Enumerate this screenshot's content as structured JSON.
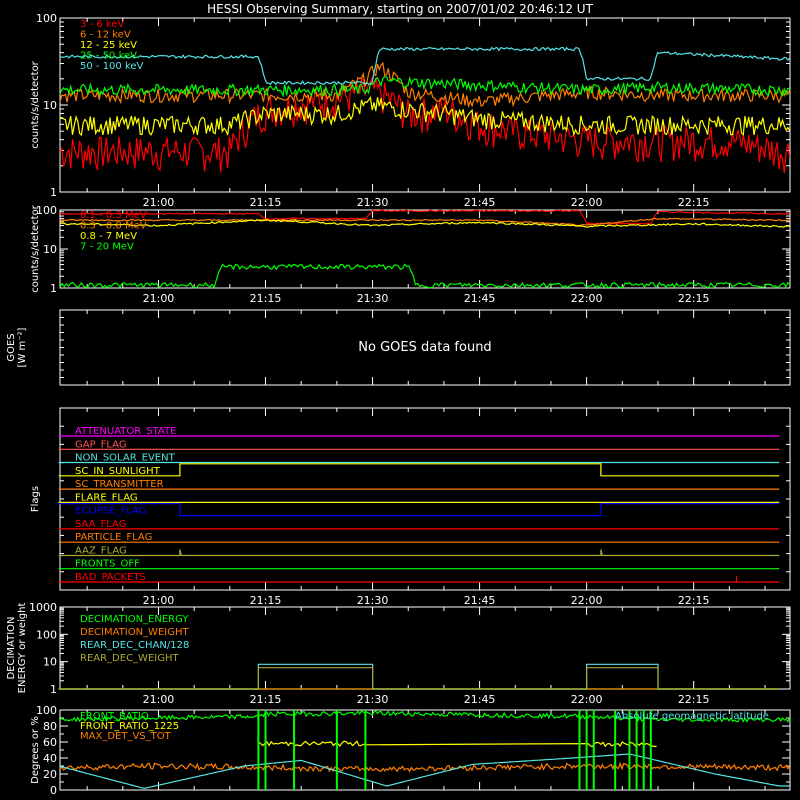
{
  "title": "HESSI Observing Summary, starting on 2007/01/02 20:46:12 UT",
  "time_ticks": [
    "21:00",
    "21:15",
    "21:30",
    "21:45",
    "22:00",
    "22:15"
  ],
  "colors": {
    "red": "#ff0000",
    "orange": "#ff7f00",
    "yellow": "#ffff00",
    "green": "#00ff00",
    "cyan": "#55e5e5",
    "magenta": "#ff00ff",
    "blue": "#0000ff",
    "olive": "#aaaa33",
    "coral": "#ff5555",
    "white": "#ffffff"
  },
  "chart_data": [
    {
      "type": "line",
      "id": "panel1",
      "ylabel": "counts/s/detector",
      "yscale": "log",
      "ylim": [
        1,
        100
      ],
      "ytick_labels": [
        "1",
        "10",
        "100"
      ],
      "legend": [
        "3 - 6 keV",
        "6 - 12 keV",
        "12 - 25 keV",
        "25 - 50 keV",
        "50 - 100 keV"
      ],
      "legend_colors": [
        "#ff0000",
        "#ff7f00",
        "#ffff00",
        "#00ff00",
        "#55e5e5"
      ],
      "series": [
        {
          "name": "3 - 6 keV",
          "color": "#ff0000",
          "x": [
            "20:46",
            "21:10",
            "21:15",
            "21:25",
            "21:30",
            "21:35",
            "21:40",
            "21:45",
            "21:50",
            "22:00",
            "22:10",
            "22:20",
            "22:27"
          ],
          "y": [
            3,
            3,
            9,
            12,
            15,
            8,
            9,
            6,
            5,
            4,
            4,
            4,
            3
          ]
        },
        {
          "name": "6 - 12 keV",
          "color": "#ff7f00",
          "x": [
            "20:46",
            "21:15",
            "21:25",
            "21:29",
            "21:31",
            "21:35",
            "21:45",
            "22:00",
            "22:10",
            "22:27"
          ],
          "y": [
            13,
            13,
            13,
            20,
            28,
            14,
            11,
            14,
            13,
            13
          ]
        },
        {
          "name": "12 - 25 keV",
          "color": "#ffff00",
          "x": [
            "20:46",
            "21:10",
            "21:15",
            "21:25",
            "21:30",
            "21:35",
            "21:45",
            "22:00",
            "22:10",
            "22:27"
          ],
          "y": [
            6,
            6,
            8,
            8,
            10,
            9,
            7,
            6,
            6,
            6
          ]
        },
        {
          "name": "25 - 50 keV",
          "color": "#00ff00",
          "x": [
            "20:46",
            "21:15",
            "21:29",
            "21:31",
            "21:45",
            "22:00",
            "22:10",
            "22:27"
          ],
          "y": [
            15,
            15,
            15,
            19,
            17,
            15,
            16,
            15
          ]
        },
        {
          "name": "50 - 100 keV",
          "color": "#55e5e5",
          "x": [
            "20:46",
            "21:14",
            "21:15",
            "21:30",
            "21:31",
            "21:59",
            "22:00",
            "22:09",
            "22:10",
            "22:27"
          ],
          "y": [
            36,
            36,
            18,
            18,
            44,
            44,
            20,
            20,
            40,
            34
          ]
        }
      ]
    },
    {
      "type": "line",
      "id": "panel2",
      "ylabel": "counts/s/detector",
      "yscale": "log",
      "ylim": [
        1,
        100
      ],
      "ytick_labels": [
        "1",
        "10",
        "100"
      ],
      "legend": [
        "0.1 - 0.3 MeV",
        "0.3 - 0.8 MeV",
        "0.8 - 7 MeV",
        "7 - 20 MeV"
      ],
      "legend_colors": [
        "#ff0000",
        "#ff7f00",
        "#ffff00",
        "#00ff00"
      ],
      "series": [
        {
          "name": "0.1 - 0.3 MeV",
          "color": "#ff0000",
          "x": [
            "20:46",
            "21:14",
            "21:15",
            "21:29",
            "21:30",
            "21:59",
            "22:00",
            "22:09",
            "22:10",
            "22:27"
          ],
          "y": [
            80,
            80,
            60,
            60,
            95,
            95,
            45,
            45,
            90,
            80
          ]
        },
        {
          "name": "0.3 - 0.8 MeV",
          "color": "#ff7f00",
          "x": [
            "20:46",
            "21:15",
            "21:30",
            "21:45",
            "22:00",
            "22:10",
            "22:27"
          ],
          "y": [
            55,
            55,
            55,
            55,
            40,
            60,
            55
          ]
        },
        {
          "name": "0.8 - 7 MeV",
          "color": "#ffff00",
          "x": [
            "20:46",
            "21:00",
            "21:15",
            "21:30",
            "21:45",
            "22:00",
            "22:15",
            "22:27"
          ],
          "y": [
            45,
            40,
            55,
            40,
            48,
            38,
            44,
            38
          ]
        },
        {
          "name": "7 - 20 MeV",
          "color": "#00ff00",
          "x": [
            "20:46",
            "21:08",
            "21:09",
            "21:35",
            "21:36",
            "22:27"
          ],
          "y": [
            1.2,
            1.2,
            3.5,
            3.5,
            1.2,
            1.2
          ]
        }
      ]
    },
    {
      "type": "line",
      "id": "panel3",
      "ylabel": "GOES",
      "ylabel2": "[W m⁻²]",
      "message": "No GOES data found",
      "series": []
    },
    {
      "type": "line",
      "id": "panel4",
      "ylabel": "Flags",
      "series": [
        {
          "name": "ATTENUATOR_STATE",
          "color": "#ff00ff",
          "x": [
            "20:46",
            "22:27"
          ],
          "y": [
            0,
            0
          ]
        },
        {
          "name": "GAP_FLAG",
          "color": "#ff5555",
          "x": [
            "20:46",
            "22:27"
          ],
          "y": [
            0,
            0
          ]
        },
        {
          "name": "NON_SOLAR_EVENT",
          "color": "#55e5e5",
          "x": [
            "20:46",
            "22:27"
          ],
          "y": [
            0,
            0
          ]
        },
        {
          "name": "SC_IN_SUNLIGHT",
          "color": "#ffff00",
          "x": [
            "20:46",
            "21:03",
            "21:03",
            "22:02",
            "22:02",
            "22:27"
          ],
          "y": [
            0,
            0,
            1,
            1,
            0,
            0
          ]
        },
        {
          "name": "SC_TRANSMITTER",
          "color": "#ff7f00",
          "x": [
            "20:46",
            "22:27"
          ],
          "y": [
            0,
            0
          ]
        },
        {
          "name": "FLARE_FLAG",
          "color": "#ffff00",
          "x": [
            "20:46",
            "22:27"
          ],
          "y": [
            0,
            0
          ]
        },
        {
          "name": "ECLIPSE_FLAG",
          "color": "#0000ff",
          "x": [
            "20:46",
            "21:03",
            "21:03",
            "22:02",
            "22:02",
            "22:27"
          ],
          "y": [
            1,
            1,
            0,
            0,
            1,
            1
          ]
        },
        {
          "name": "SAA_FLAG",
          "color": "#ff0000",
          "x": [
            "20:46",
            "22:27"
          ],
          "y": [
            0,
            0
          ]
        },
        {
          "name": "PARTICLE_FLAG",
          "color": "#ff7f00",
          "x": [
            "20:46",
            "22:27"
          ],
          "y": [
            0,
            0
          ]
        },
        {
          "name": "AAZ_FLAG",
          "color": "#aaaa33",
          "x": [
            "20:46",
            "21:03",
            "21:03",
            "21:03",
            "21:03",
            "22:02",
            "22:02",
            "22:02",
            "22:02",
            "22:27"
          ],
          "y": [
            0,
            0,
            1,
            1,
            0,
            0,
            1,
            1,
            0,
            0
          ]
        },
        {
          "name": "FRONTS_OFF",
          "color": "#00ff00",
          "x": [
            "20:46",
            "22:27"
          ],
          "y": [
            0,
            0
          ]
        },
        {
          "name": "BAD_PACKETS",
          "color": "#ff0000",
          "x": [
            "20:46",
            "22:21",
            "22:21",
            "22:21",
            "22:21",
            "22:27"
          ],
          "y": [
            0,
            0,
            1,
            1,
            0,
            0
          ]
        }
      ]
    },
    {
      "type": "line",
      "id": "panel5",
      "ylabel": "DECIMATION",
      "ylabel2": "ENERGY or weight",
      "yscale": "log",
      "ylim": [
        1,
        1000
      ],
      "ytick_labels": [
        "1",
        "10",
        "100",
        "1000"
      ],
      "legend": [
        "DECIMATION_ENERGY",
        "DECIMATION_WEIGHT",
        "REAR_DEC_CHAN/128",
        "REAR_DEC_WEIGHT"
      ],
      "legend_colors": [
        "#00ff00",
        "#ff7f00",
        "#55e5e5",
        "#aaaa33"
      ],
      "series": [
        {
          "name": "DECIMATION_ENERGY",
          "color": "#00ff00",
          "x": [
            "20:46",
            "22:27"
          ],
          "y": [
            1,
            1
          ]
        },
        {
          "name": "DECIMATION_WEIGHT",
          "color": "#ff7f00",
          "x": [
            "20:46",
            "22:27"
          ],
          "y": [
            1,
            1
          ]
        },
        {
          "name": "REAR_DEC_CHAN/128",
          "color": "#55e5e5",
          "x": [
            "20:46",
            "21:14",
            "21:14",
            "21:30",
            "21:30",
            "22:00",
            "22:00",
            "22:10",
            "22:10",
            "22:27"
          ],
          "y": [
            1,
            1,
            8,
            8,
            1,
            1,
            8,
            8,
            1,
            1
          ]
        },
        {
          "name": "REAR_DEC_WEIGHT",
          "color": "#aaaa33",
          "x": [
            "20:46",
            "21:14",
            "21:14",
            "21:30",
            "21:30",
            "22:00",
            "22:00",
            "22:10",
            "22:10",
            "22:27"
          ],
          "y": [
            1,
            1,
            6,
            6,
            1,
            1,
            6,
            6,
            1,
            1
          ]
        }
      ]
    },
    {
      "type": "line",
      "id": "panel6",
      "ylabel": "Degrees or %",
      "ylim": [
        0,
        100
      ],
      "ytick_labels": [
        "0",
        "20",
        "40",
        "60",
        "80",
        "100"
      ],
      "legend": [
        "FRONT_RATIO",
        "FRONT_RATIO_1225",
        "MAX_DET_VS_TOT"
      ],
      "legend_colors": [
        "#00ff00",
        "#ffff00",
        "#ff7f00"
      ],
      "annotation": "Absolute geomagnetic latitude",
      "annotation_color": "#55e5e5",
      "series": [
        {
          "name": "FRONT_RATIO",
          "color": "#00ff00",
          "x": [
            "20:46",
            "21:00",
            "21:14",
            "21:15",
            "21:30",
            "21:45",
            "22:00",
            "22:10",
            "22:27"
          ],
          "y": [
            88,
            90,
            92,
            95,
            96,
            94,
            92,
            88,
            88
          ]
        },
        {
          "name": "FRONT_RATIO_1225",
          "color": "#ffff00",
          "x": [
            "21:14",
            "21:14",
            "21:29",
            "21:29",
            "22:00",
            "22:00",
            "22:10",
            "22:10"
          ],
          "y": [
            0,
            58,
            60,
            50,
            0,
            58,
            56,
            0
          ]
        },
        {
          "name": "MAX_DET_VS_TOT",
          "color": "#ff7f00",
          "x": [
            "20:46",
            "21:00",
            "21:15",
            "21:30",
            "21:45",
            "22:00",
            "22:15",
            "22:27"
          ],
          "y": [
            28,
            30,
            28,
            26,
            28,
            30,
            29,
            28
          ]
        },
        {
          "name": "Absolute geomagnetic latitude",
          "color": "#55e5e5",
          "x": [
            "20:46",
            "20:58",
            "21:12",
            "21:20",
            "21:32",
            "21:44",
            "21:58",
            "22:06",
            "22:18",
            "22:27"
          ],
          "y": [
            30,
            2,
            30,
            37,
            5,
            32,
            40,
            45,
            20,
            5
          ]
        }
      ]
    }
  ]
}
